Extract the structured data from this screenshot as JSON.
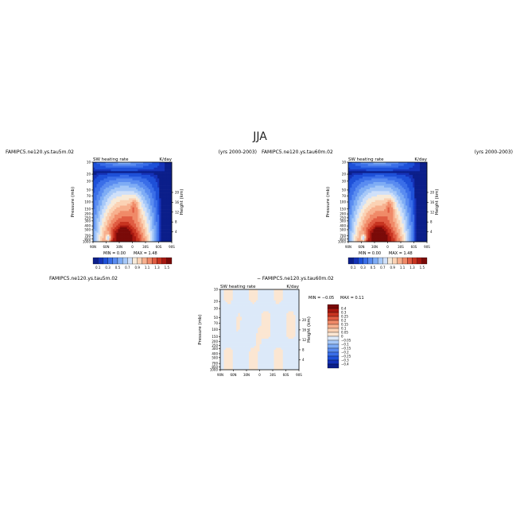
{
  "page": {
    "title": "JJA"
  },
  "chart_data": [
    {
      "type": "heatmap",
      "case_label": "FAMIPC5.ne120.ys.tau5m.02",
      "years_label": "(yrs 2000-2003)",
      "field_label": "SW heating rate",
      "units": "K/day",
      "ylabel": "Pressure (mb)",
      "ylabel_right": "Height (km)",
      "x_ticks": [
        "90N",
        "60N",
        "30N",
        "0",
        "30S",
        "60S",
        "90S"
      ],
      "y_ticks": [
        "1000",
        "850",
        "700",
        "500",
        "400",
        "300",
        "250",
        "200",
        "150",
        "100",
        "70",
        "50",
        "30",
        "20",
        "10"
      ],
      "y_ticks_right": [
        "4",
        "8",
        "12",
        "16",
        "20"
      ],
      "xlim": [
        90,
        -90
      ],
      "ylim": [
        1000,
        10
      ],
      "min_text": "MIN =    0.00",
      "max_text": "MAX =    1.48",
      "colorbar_labels": [
        "0.1",
        "0.3",
        "0.5",
        "0.7",
        "0.9",
        "1.1",
        "1.3",
        "1.5"
      ]
    },
    {
      "type": "heatmap",
      "case_label": "FAMIPC5.ne120.ys.tau60m.02",
      "years_label": "(yrs 2000-2003)",
      "field_label": "SW heating rate",
      "units": "K/day",
      "ylabel": "Pressure (mb)",
      "ylabel_right": "Height (km)",
      "x_ticks": [
        "90N",
        "60N",
        "30N",
        "0",
        "30S",
        "60S",
        "90S"
      ],
      "y_ticks": [
        "1000",
        "850",
        "700",
        "500",
        "400",
        "300",
        "250",
        "200",
        "150",
        "100",
        "70",
        "50",
        "30",
        "20",
        "10"
      ],
      "y_ticks_right": [
        "4",
        "8",
        "12",
        "16",
        "20"
      ],
      "xlim": [
        90,
        -90
      ],
      "ylim": [
        1000,
        10
      ],
      "min_text": "MIN =    0.00",
      "max_text": "MAX =    1.48",
      "colorbar_labels": [
        "0.1",
        "0.3",
        "0.5",
        "0.7",
        "0.9",
        "1.1",
        "1.3",
        "1.5"
      ]
    },
    {
      "type": "heatmap",
      "case_label": "FAMIPC5.ne120.ys.tau5m.02",
      "diff_label": "− FAMIPC5.ne120.ys.tau60m.02",
      "field_label": "SW heating rate",
      "units": "K/day",
      "ylabel": "Pressure (mb)",
      "ylabel_right": "Height (km)",
      "x_ticks": [
        "90N",
        "60N",
        "30N",
        "0",
        "30S",
        "60S",
        "90S"
      ],
      "y_ticks": [
        "1000",
        "850",
        "700",
        "500",
        "400",
        "300",
        "250",
        "200",
        "150",
        "100",
        "70",
        "50",
        "30",
        "20",
        "10"
      ],
      "y_ticks_right": [
        "4",
        "8",
        "12",
        "16",
        "20"
      ],
      "xlim": [
        90,
        -90
      ],
      "ylim": [
        1000,
        10
      ],
      "min_text": "MIN =  −0.05",
      "max_text": "MAX =    0.11",
      "colorbar_labels": [
        "0.4",
        "0.3",
        "0.25",
        "0.2",
        "0.15",
        "0.1",
        "0.05",
        "0",
        "−0.05",
        "−0.1",
        "−0.15",
        "−0.2",
        "−0.25",
        "−0.3",
        "−0.4"
      ]
    }
  ],
  "colors": {
    "full": [
      "#0b1e8a",
      "#1432b8",
      "#1e50d8",
      "#3a6ee8",
      "#5a8cf0",
      "#7eacf5",
      "#a6c8f8",
      "#cfe0f9",
      "#f7ead8",
      "#fbd2b4",
      "#f7b08e",
      "#f08a68",
      "#e05c42",
      "#c83420",
      "#a81810",
      "#7a0a08"
    ],
    "diff": [
      "#7a0a08",
      "#a81810",
      "#c83420",
      "#e05c42",
      "#f08a68",
      "#f7b08e",
      "#fbd2b4",
      "#fbe6d2",
      "#dce9f9",
      "#a6c8f8",
      "#7eacf5",
      "#5a8cf0",
      "#3a6ee8",
      "#1e50d8",
      "#1432b8",
      "#0b1e8a"
    ]
  }
}
